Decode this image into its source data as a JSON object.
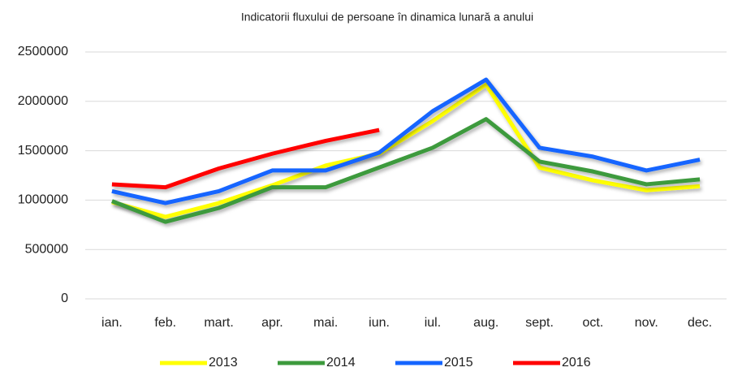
{
  "chart_data": {
    "type": "line",
    "title": "Indicatorii fluxului de persoane în dinamica lunară a anului",
    "categories": [
      "ian.",
      "feb.",
      "mart.",
      "apr.",
      "mai.",
      "iun.",
      "iul.",
      "aug.",
      "sept.",
      "oct.",
      "nov.",
      "dec."
    ],
    "series": [
      {
        "name": "2013",
        "color": "#ffff00",
        "values": [
          980000,
          830000,
          970000,
          1150000,
          1350000,
          1470000,
          1800000,
          2170000,
          1330000,
          1200000,
          1100000,
          1140000
        ]
      },
      {
        "name": "2014",
        "color": "#3d9a3d",
        "values": [
          990000,
          780000,
          920000,
          1130000,
          1130000,
          1330000,
          1530000,
          1820000,
          1390000,
          1290000,
          1160000,
          1210000
        ]
      },
      {
        "name": "2015",
        "color": "#1565ff",
        "values": [
          1090000,
          970000,
          1090000,
          1300000,
          1300000,
          1480000,
          1900000,
          2220000,
          1530000,
          1440000,
          1300000,
          1410000
        ]
      },
      {
        "name": "2016",
        "color": "#ff0000",
        "values": [
          1160000,
          1130000,
          1320000,
          1470000,
          1600000,
          1710000,
          null,
          null,
          null,
          null,
          null,
          null
        ]
      }
    ],
    "ylim": [
      0,
      2500000
    ],
    "yticks": [
      0,
      500000,
      1000000,
      1500000,
      2000000,
      2500000
    ],
    "grid": true,
    "legend": "bottom"
  }
}
